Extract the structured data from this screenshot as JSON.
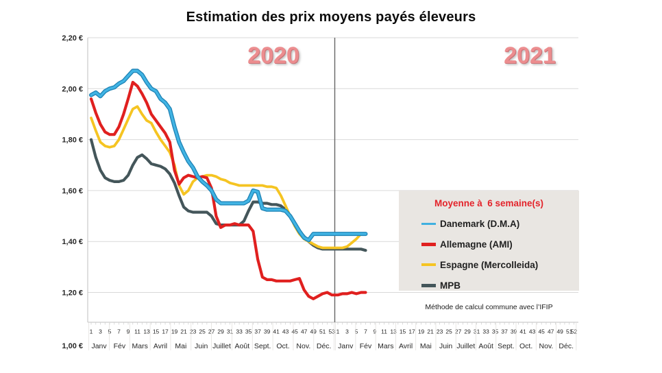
{
  "title": "Estimation des prix moyens payés éleveurs",
  "year_labels": [
    "2020",
    "2021"
  ],
  "legend": {
    "title": "Moyenne à  6 semaine(s)",
    "items": [
      {
        "id": "danemark",
        "label": "Danemark (D.M.A)",
        "color": "#41b4e4"
      },
      {
        "id": "allemagne",
        "label": "Allemagne (AMI)",
        "color": "#e0201f"
      },
      {
        "id": "espagne",
        "label": "Espagne (Mercolleida)",
        "color": "#f5c422"
      },
      {
        "id": "mpb",
        "label": "MPB",
        "color": "#44565a"
      }
    ]
  },
  "footnote": "Méthode de calcul commune avec l’IFIP",
  "chart_data": {
    "type": "line",
    "title": "Estimation des prix moyens payés éleveurs",
    "currency_format": "1,00 €",
    "y_axis": {
      "ticks": [
        "2,20 €",
        "2,00 €",
        "1,80 €",
        "1,60 €",
        "1,40 €",
        "1,20 €",
        "1,00 €"
      ],
      "values": [
        2.2,
        2.0,
        1.8,
        1.6,
        1.4,
        1.2,
        1.0
      ],
      "range": [
        1.0,
        2.2
      ],
      "gridlines": true
    },
    "x_axis": {
      "years": [
        {
          "label": "2020",
          "weeks": 53
        },
        {
          "label": "2021",
          "weeks": 52
        }
      ],
      "week_tick_labels_2020": [
        1,
        3,
        5,
        7,
        9,
        11,
        13,
        15,
        17,
        19,
        21,
        23,
        25,
        27,
        29,
        31,
        33,
        35,
        37,
        39,
        41,
        43,
        45,
        47,
        49,
        51,
        53
      ],
      "week_tick_labels_2021": [
        1,
        3,
        5,
        7,
        9,
        11,
        13,
        15,
        17,
        19,
        21,
        23,
        25,
        27,
        29,
        31,
        33,
        35,
        37,
        39,
        41,
        43,
        45,
        47,
        49,
        51,
        52
      ],
      "months": [
        "Janv",
        "Fév",
        "Mars",
        "Avril",
        "Mai",
        "Juin",
        "Juillet",
        "Août",
        "Sept.",
        "Oct.",
        "Nov.",
        "Déc."
      ]
    },
    "data_ends": "2021 week 7",
    "series": [
      {
        "id": "danemark",
        "name": "Danemark (D.M.A)",
        "color": "#41b4e4",
        "outline": "#1e82b4",
        "values_2020": [
          1.975,
          1.985,
          1.97,
          1.99,
          2.0,
          2.005,
          2.02,
          2.03,
          2.05,
          2.07,
          2.07,
          2.055,
          2.025,
          2.0,
          1.99,
          1.96,
          1.945,
          1.92,
          1.85,
          1.79,
          1.75,
          1.715,
          1.69,
          1.655,
          1.635,
          1.62,
          1.6,
          1.565,
          1.55,
          1.55,
          1.55,
          1.55,
          1.55,
          1.55,
          1.56,
          1.6,
          1.595,
          1.53,
          1.525,
          1.525,
          1.525,
          1.525,
          1.52,
          1.5,
          1.47,
          1.44,
          1.415,
          1.405,
          1.43,
          1.43,
          1.43,
          1.43,
          1.43
        ],
        "values_2021": [
          1.43,
          1.43,
          1.43,
          1.43,
          1.43,
          1.43,
          1.43
        ]
      },
      {
        "id": "allemagne",
        "name": "Allemagne (AMI)",
        "color": "#e0201f",
        "values_2020": [
          1.96,
          1.905,
          1.86,
          1.83,
          1.82,
          1.82,
          1.85,
          1.9,
          1.96,
          2.025,
          2.01,
          1.98,
          1.945,
          1.9,
          1.875,
          1.85,
          1.825,
          1.79,
          1.68,
          1.625,
          1.65,
          1.66,
          1.655,
          1.65,
          1.655,
          1.65,
          1.61,
          1.5,
          1.455,
          1.465,
          1.465,
          1.47,
          1.465,
          1.465,
          1.465,
          1.44,
          1.33,
          1.26,
          1.25,
          1.25,
          1.245,
          1.245,
          1.245,
          1.245,
          1.25,
          1.255,
          1.21,
          1.185,
          1.175,
          1.185,
          1.195,
          1.2,
          1.19
        ],
        "values_2021": [
          1.19,
          1.195,
          1.195,
          1.2,
          1.195,
          1.2,
          1.2
        ]
      },
      {
        "id": "espagne",
        "name": "Espagne (Mercolleida)",
        "color": "#f5c422",
        "values_2020": [
          1.885,
          1.835,
          1.79,
          1.775,
          1.77,
          1.775,
          1.8,
          1.84,
          1.88,
          1.92,
          1.93,
          1.9,
          1.875,
          1.865,
          1.83,
          1.8,
          1.775,
          1.75,
          1.7,
          1.62,
          1.585,
          1.6,
          1.635,
          1.65,
          1.655,
          1.66,
          1.66,
          1.655,
          1.645,
          1.64,
          1.63,
          1.625,
          1.62,
          1.62,
          1.62,
          1.62,
          1.62,
          1.62,
          1.615,
          1.615,
          1.61,
          1.58,
          1.54,
          1.5,
          1.46,
          1.43,
          1.41,
          1.4,
          1.39,
          1.38,
          1.375,
          1.375,
          1.375
        ],
        "values_2021": [
          1.375,
          1.375,
          1.38,
          1.395,
          1.41,
          1.43,
          1.43
        ]
      },
      {
        "id": "mpb",
        "name": "MPB",
        "color": "#44565a",
        "values_2020": [
          1.8,
          1.73,
          1.68,
          1.65,
          1.64,
          1.635,
          1.635,
          1.64,
          1.66,
          1.7,
          1.73,
          1.74,
          1.725,
          1.705,
          1.7,
          1.695,
          1.685,
          1.665,
          1.63,
          1.58,
          1.535,
          1.52,
          1.515,
          1.515,
          1.515,
          1.515,
          1.5,
          1.47,
          1.465,
          1.465,
          1.465,
          1.465,
          1.465,
          1.48,
          1.52,
          1.555,
          1.555,
          1.55,
          1.55,
          1.545,
          1.545,
          1.54,
          1.525,
          1.5,
          1.47,
          1.44,
          1.42,
          1.4,
          1.385,
          1.375,
          1.37,
          1.37,
          1.37
        ],
        "values_2021": [
          1.37,
          1.37,
          1.37,
          1.37,
          1.37,
          1.37,
          1.365
        ]
      }
    ]
  }
}
